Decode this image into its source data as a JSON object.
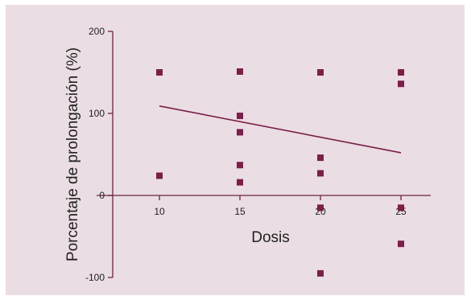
{
  "chart_data": {
    "type": "scatter",
    "title": "",
    "xlabel": "Dosis",
    "ylabel": "Porcentaje de prolongación (%)",
    "xlim": [
      7,
      27
    ],
    "ylim": [
      -100,
      200
    ],
    "xticks": [
      10,
      15,
      20,
      25
    ],
    "yticks": [
      -100,
      0,
      100,
      200
    ],
    "background": "#eadde3",
    "marker_color": "#7a1e4a",
    "axis_color": "#6b2444",
    "points": [
      {
        "x": 10,
        "y": 150
      },
      {
        "x": 10,
        "y": 24
      },
      {
        "x": 15,
        "y": 151
      },
      {
        "x": 15,
        "y": 97
      },
      {
        "x": 15,
        "y": 77
      },
      {
        "x": 15,
        "y": 37
      },
      {
        "x": 15,
        "y": 16
      },
      {
        "x": 20,
        "y": 150
      },
      {
        "x": 20,
        "y": 46
      },
      {
        "x": 20,
        "y": 27
      },
      {
        "x": 20,
        "y": -15
      },
      {
        "x": 20,
        "y": -95
      },
      {
        "x": 25,
        "y": 150
      },
      {
        "x": 25,
        "y": 136
      },
      {
        "x": 25,
        "y": -15
      },
      {
        "x": 25,
        "y": -59
      }
    ],
    "trendline": {
      "x": [
        10,
        25
      ],
      "y": [
        109,
        52
      ]
    }
  }
}
